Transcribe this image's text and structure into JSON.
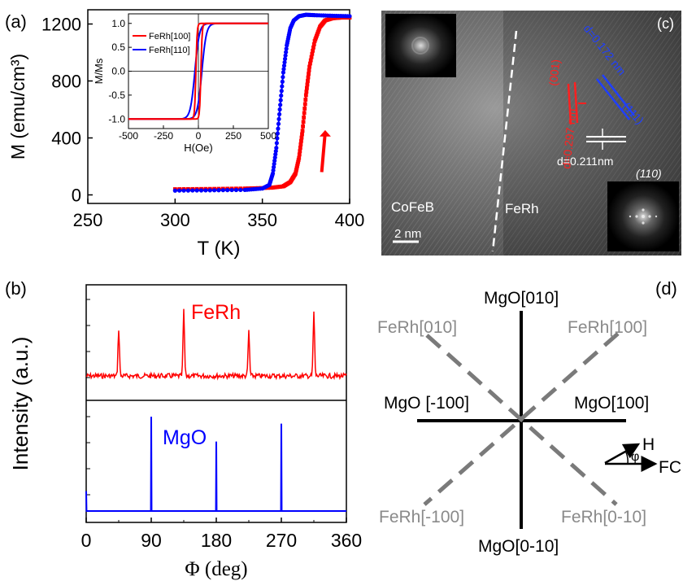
{
  "panels": {
    "a": "(a)",
    "b": "(b)",
    "c": "(c)",
    "d": "(d)"
  },
  "chart_data": [
    {
      "id": "a-main",
      "type": "line",
      "xlabel": "T (K)",
      "ylabel": "M (emu/cm³)",
      "xlim": [
        250,
        400
      ],
      "ylim": [
        -60,
        1300
      ],
      "xticks": [
        250,
        300,
        350,
        400
      ],
      "yticks": [
        0,
        400,
        800,
        1200
      ],
      "series": [
        {
          "color": "#ff0000",
          "x": [
            300,
            320,
            340,
            355,
            362,
            366,
            369,
            371,
            373,
            375,
            377,
            380,
            383,
            386,
            390,
            395,
            400
          ],
          "y": [
            40,
            42,
            45,
            50,
            60,
            90,
            150,
            260,
            450,
            700,
            900,
            1080,
            1180,
            1225,
            1240,
            1245,
            1245
          ]
        },
        {
          "color": "#0000ff",
          "x": [
            300,
            320,
            340,
            350,
            354,
            356,
            358,
            360,
            362,
            364,
            366,
            368,
            371,
            375,
            380,
            390,
            400
          ],
          "y": [
            30,
            32,
            35,
            45,
            70,
            150,
            330,
            600,
            860,
            1050,
            1170,
            1225,
            1255,
            1265,
            1262,
            1258,
            1255
          ]
        }
      ],
      "annotations": [
        {
          "text": "↓",
          "color": "#0000ff"
        },
        {
          "text": "↑",
          "color": "#ff0000"
        }
      ]
    },
    {
      "id": "a-inset",
      "type": "line",
      "xlabel": "H(Oe)",
      "ylabel": "M/Ms",
      "xlim": [
        -500,
        500
      ],
      "ylim": [
        -1.2,
        1.2
      ],
      "xticks": [
        -500,
        -250,
        0,
        250,
        500
      ],
      "yticks": [
        -1.0,
        -0.5,
        0.0,
        0.5,
        1.0
      ],
      "legend": "top-left",
      "series": [
        {
          "name": "FeRh[100]",
          "color": "#ff0000"
        },
        {
          "name": "FeRh[110]",
          "color": "#0000ff"
        }
      ]
    },
    {
      "id": "b-ferh",
      "type": "line",
      "xlim": [
        0,
        360
      ],
      "legend_text": "FeRh",
      "color": "#ff0000",
      "peaks": [
        {
          "x": 45,
          "h": 0.58
        },
        {
          "x": 135,
          "h": 0.8
        },
        {
          "x": 225,
          "h": 0.55
        },
        {
          "x": 315,
          "h": 0.78
        }
      ]
    },
    {
      "id": "b-mgo",
      "type": "line",
      "xlabel": "Φ (deg)",
      "ylabel": "Intensity (a.u.)",
      "xlim": [
        0,
        360
      ],
      "xticks": [
        0,
        90,
        180,
        270,
        360
      ],
      "legend_text": "MgO",
      "color": "#0000ff",
      "peaks": [
        {
          "x": 0,
          "h": 0.2
        },
        {
          "x": 90,
          "h": 0.95
        },
        {
          "x": 180,
          "h": 0.7
        },
        {
          "x": 270,
          "h": 0.88
        }
      ]
    }
  ],
  "tem": {
    "cofeb": "CoFeB",
    "ferh": "FeRh",
    "scale": "2  nm",
    "d1": "d=0.172 nm",
    "d2": "d=0.297 nm",
    "d3": "d=0.211nm",
    "plane1": "(001)",
    "plane2": "(111)",
    "plane3": "(110)"
  },
  "diagram": {
    "mgo_010": "MgO[010]",
    "mgo_0m10": "MgO[0-10]",
    "mgo_m100": "MgO [-100]",
    "mgo_100": "MgO[100]",
    "ferh_010": "FeRh[010]",
    "ferh_100": "FeRh[100]",
    "ferh_m100": "FeRh[-100]",
    "ferh_0m10": "FeRh[0-10]",
    "h": "H",
    "phi": "φ",
    "fc": "FC"
  }
}
